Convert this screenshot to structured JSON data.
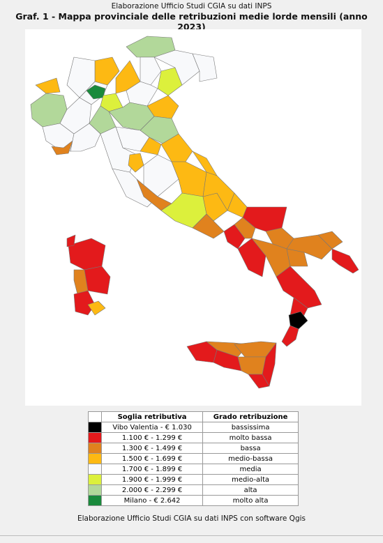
{
  "header": {
    "source": "Elaborazione Ufficio Studi CGIA su dati INPS",
    "title": "Graf. 1 - Mappa provinciale delle retribuzioni medie lorde mensili (anno 2023)"
  },
  "legend": {
    "columns": [
      "Soglia retributiva",
      "Grado retribuzione"
    ],
    "rows": [
      {
        "color": "#000000",
        "range": "Vibo Valentia - € 1.030",
        "grade": "bassissima"
      },
      {
        "color": "#e31a1c",
        "range": "1.100 € - 1.299 €",
        "grade": "molto bassa"
      },
      {
        "color": "#e0821e",
        "range": "1.300 € - 1.499 €",
        "grade": "bassa"
      },
      {
        "color": "#fdb913",
        "range": "1.500 € - 1.699 €",
        "grade": "medio-bassa"
      },
      {
        "color": "#f8f9fb",
        "range": "1.700 € - 1.899 €",
        "grade": "media"
      },
      {
        "color": "#dcf03c",
        "range": "1.900 € - 1.999 €",
        "grade": "medio-alta"
      },
      {
        "color": "#b2d89a",
        "range": "2.000 € - 2.299 €",
        "grade": "alta"
      },
      {
        "color": "#1a8a3c",
        "range": "Milano - € 2.642",
        "grade": "molto alta"
      }
    ]
  },
  "footer": "Elaborazione Ufficio Studi CGIA su dati INPS con software Qgis"
}
